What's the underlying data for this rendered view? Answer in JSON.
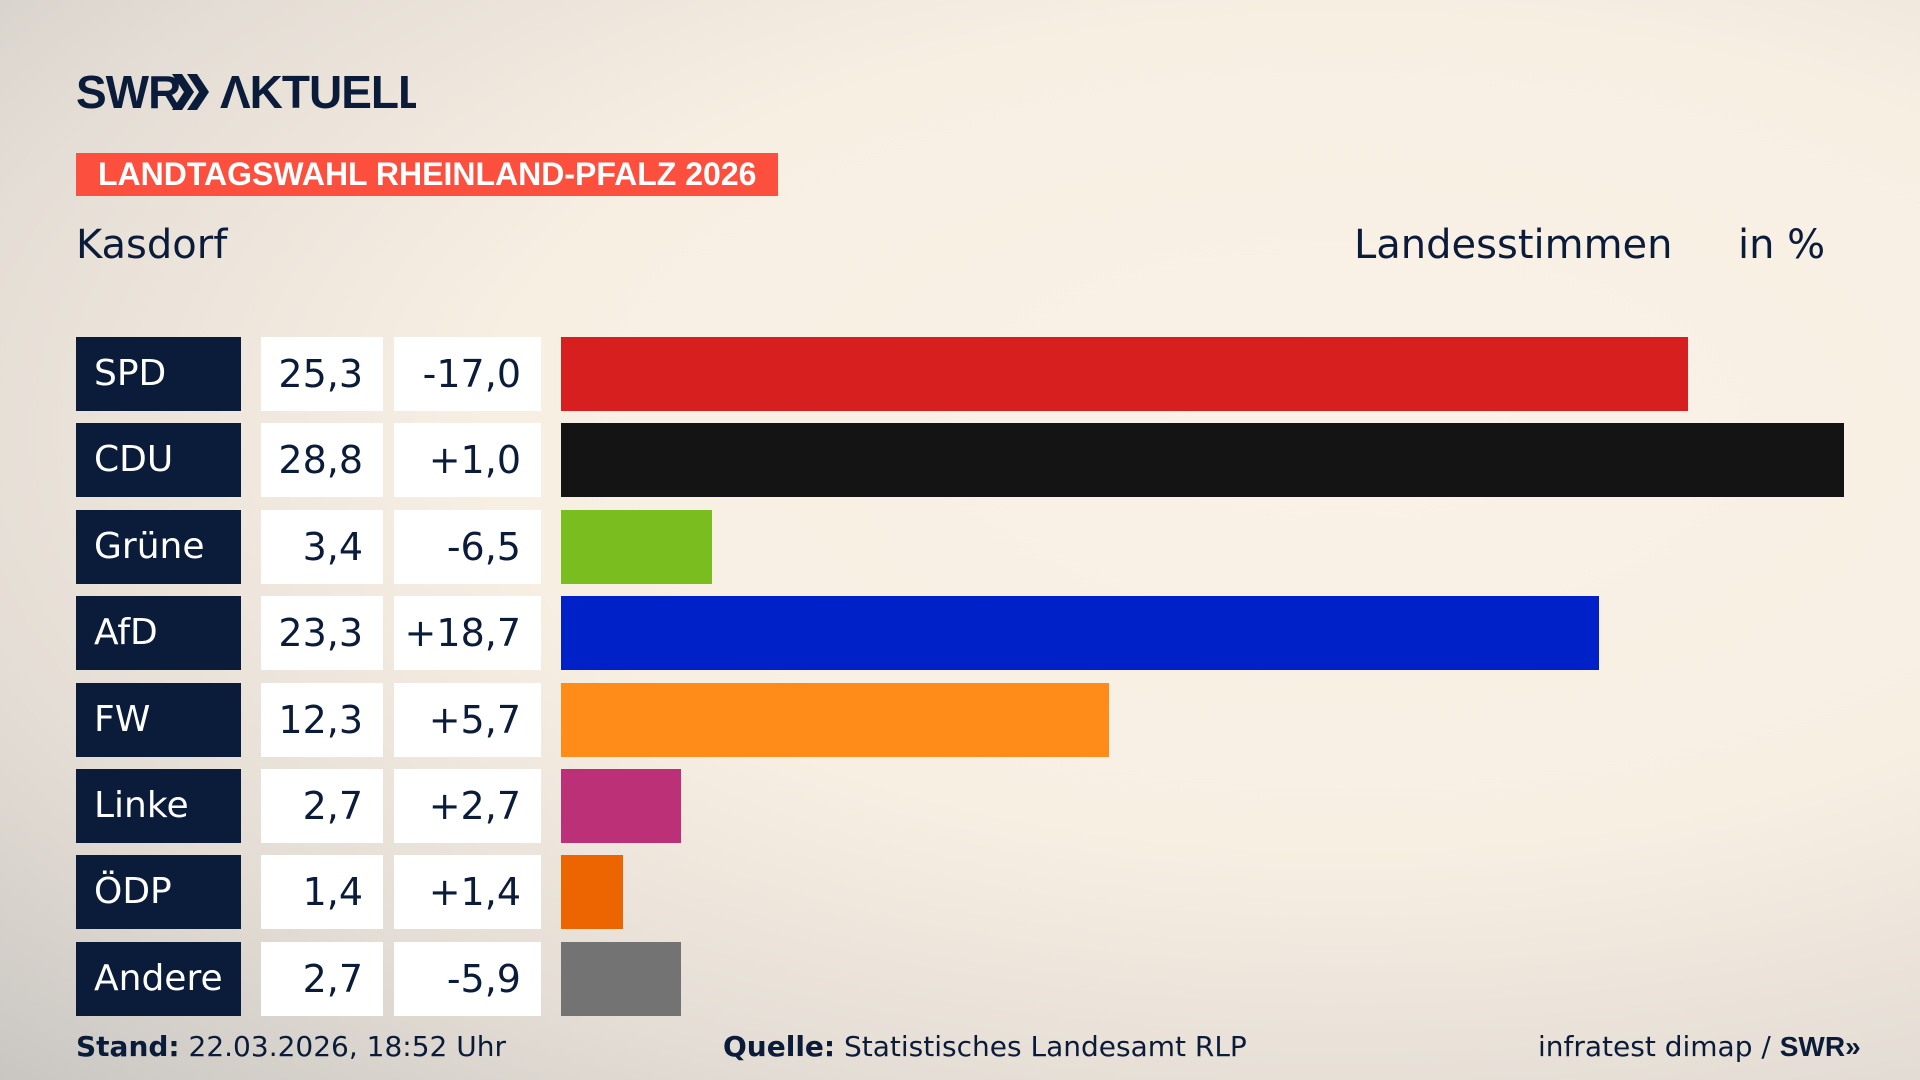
{
  "header": {
    "logo_text": "SWR AKTUELL",
    "banner": "LANDTAGSWAHL RHEINLAND-PFALZ 2026",
    "location": "Kasdorf",
    "vote_type": "Landesstimmen",
    "unit": "in %"
  },
  "chart_data": {
    "type": "bar",
    "orientation": "horizontal",
    "title": "LANDTAGSWAHL RHEINLAND-PFALZ 2026",
    "subtitle": "Kasdorf",
    "categories": [
      "SPD",
      "CDU",
      "Grüne",
      "AfD",
      "FW",
      "Linke",
      "ÖDP",
      "Andere"
    ],
    "values": [
      25.3,
      28.8,
      3.4,
      23.3,
      12.3,
      2.7,
      1.4,
      2.7
    ],
    "value_labels": [
      "25,3",
      "28,8",
      "3,4",
      "23,3",
      "12,3",
      "2,7",
      "1,4",
      "2,7"
    ],
    "change_labels": [
      "-17,0",
      "+1,0",
      "-6,5",
      "+18,7",
      "+5,7",
      "+2,7",
      "+1,4",
      "-5,9"
    ],
    "changes": [
      -17.0,
      1.0,
      -6.5,
      18.7,
      5.7,
      2.7,
      1.4,
      -5.9
    ],
    "colors": [
      "#d81f20",
      "#141414",
      "#79bd1e",
      "#0021c7",
      "#ff8c18",
      "#bc3077",
      "#ed6500",
      "#737373"
    ],
    "ylabel": "Landesstimmen",
    "unit": "in %"
  },
  "footer": {
    "stand_label": "Stand:",
    "stand_value": "22.03.2026, 18:52 Uhr",
    "source_label": "Quelle:",
    "source_value": "Statistisches Landesamt RLP",
    "credit": "infratest dimap /",
    "credit_logo": "SWR"
  }
}
